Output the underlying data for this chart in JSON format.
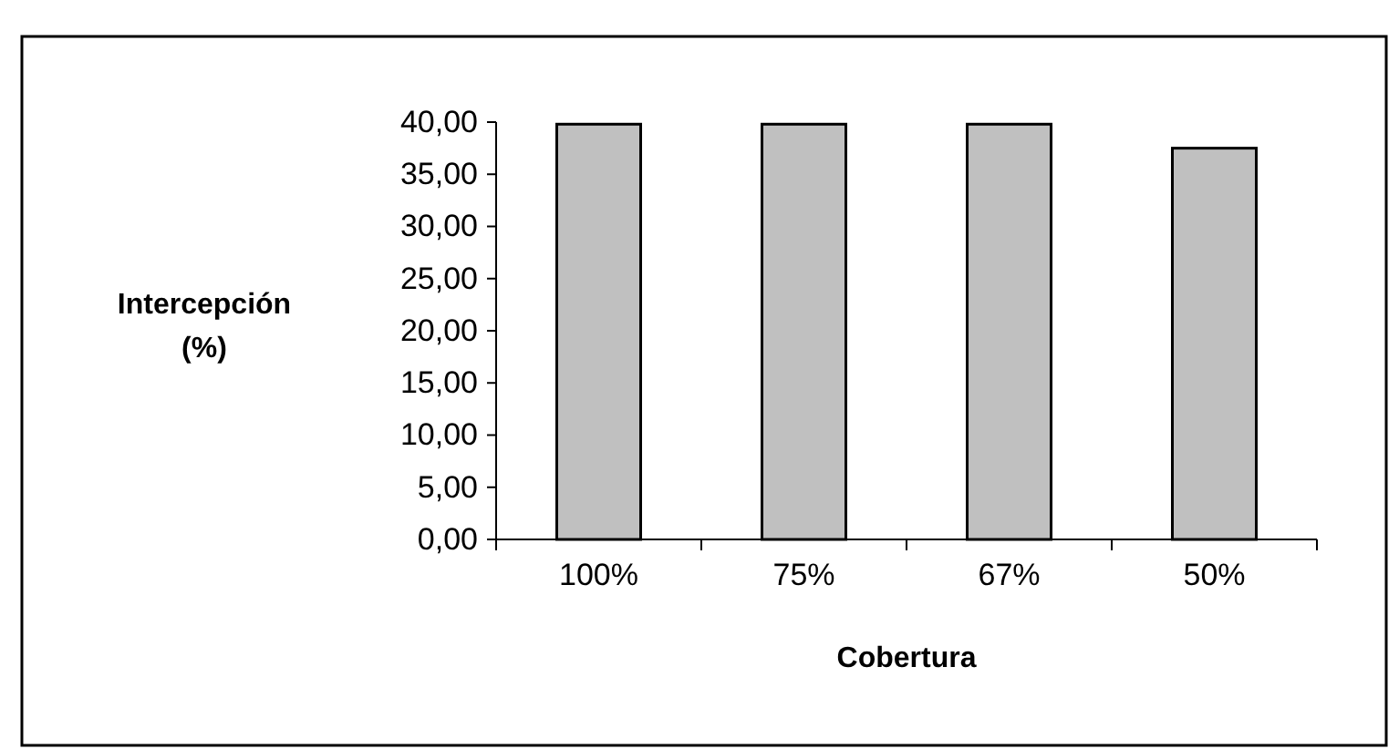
{
  "chart_data": {
    "type": "bar",
    "categories": [
      "100%",
      "75%",
      "67%",
      "50%"
    ],
    "values": [
      39.8,
      39.8,
      39.8,
      37.5
    ],
    "color": "#c0c0c0",
    "xlabel": "Cobertura",
    "ylabel": "Intercepción\n(%)",
    "ylim": [
      0,
      40
    ],
    "yticks": [
      {
        "value": 0,
        "label": "0,00"
      },
      {
        "value": 5,
        "label": "5,00"
      },
      {
        "value": 10,
        "label": "10,00"
      },
      {
        "value": 15,
        "label": "15,00"
      },
      {
        "value": 20,
        "label": "20,00"
      },
      {
        "value": 25,
        "label": "25,00"
      },
      {
        "value": 30,
        "label": "30,00"
      },
      {
        "value": 35,
        "label": "35,00"
      },
      {
        "value": 40,
        "label": "40,00"
      }
    ],
    "grid": false
  }
}
